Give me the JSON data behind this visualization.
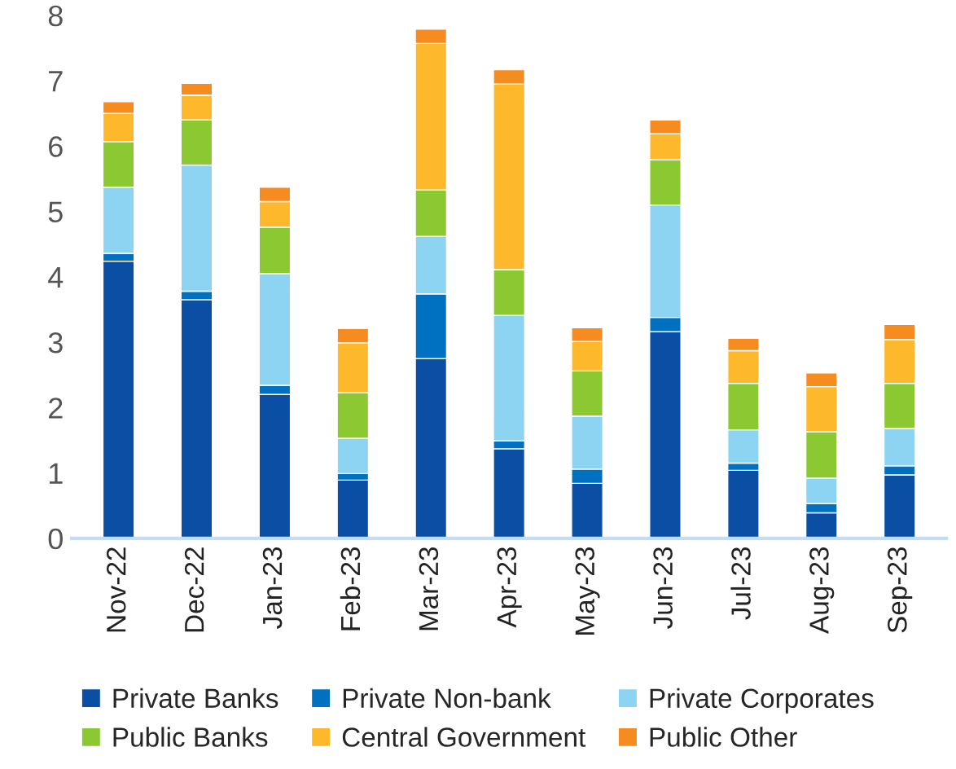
{
  "chart_data": {
    "type": "bar",
    "stacked": true,
    "categories": [
      "Nov-22",
      "Dec-22",
      "Jan-23",
      "Feb-23",
      "Mar-23",
      "Apr-23",
      "May-23",
      "Jun-23",
      "Jul-23",
      "Aug-23",
      "Sep-23"
    ],
    "series": [
      {
        "name": "Private Banks",
        "color": "#0a4fa3",
        "values": [
          4.24,
          3.65,
          2.2,
          0.89,
          2.75,
          1.37,
          0.84,
          3.16,
          1.04,
          0.39,
          0.97
        ]
      },
      {
        "name": "Private Non-bank",
        "color": "#0070c0",
        "values": [
          0.12,
          0.13,
          0.14,
          0.1,
          0.99,
          0.12,
          0.22,
          0.22,
          0.11,
          0.14,
          0.14
        ]
      },
      {
        "name": "Private Corporates",
        "color": "#8dd3f2",
        "values": [
          1.01,
          1.93,
          1.71,
          0.54,
          0.88,
          1.92,
          0.81,
          1.72,
          0.51,
          0.39,
          0.57
        ]
      },
      {
        "name": "Public Banks",
        "color": "#8bc832",
        "values": [
          0.7,
          0.69,
          0.71,
          0.7,
          0.71,
          0.7,
          0.69,
          0.69,
          0.71,
          0.71,
          0.69
        ]
      },
      {
        "name": "Central Government",
        "color": "#fdb92b",
        "values": [
          0.43,
          0.38,
          0.39,
          0.76,
          2.24,
          2.84,
          0.45,
          0.4,
          0.5,
          0.69,
          0.67
        ]
      },
      {
        "name": "Public Other",
        "color": "#f68b1f",
        "values": [
          0.18,
          0.18,
          0.22,
          0.22,
          0.22,
          0.22,
          0.21,
          0.21,
          0.19,
          0.21,
          0.23
        ]
      }
    ],
    "ylim": [
      0,
      8
    ],
    "yticks": [
      0,
      1,
      2,
      3,
      4,
      5,
      6,
      7,
      8
    ],
    "grid": false,
    "legend": "bottom"
  }
}
